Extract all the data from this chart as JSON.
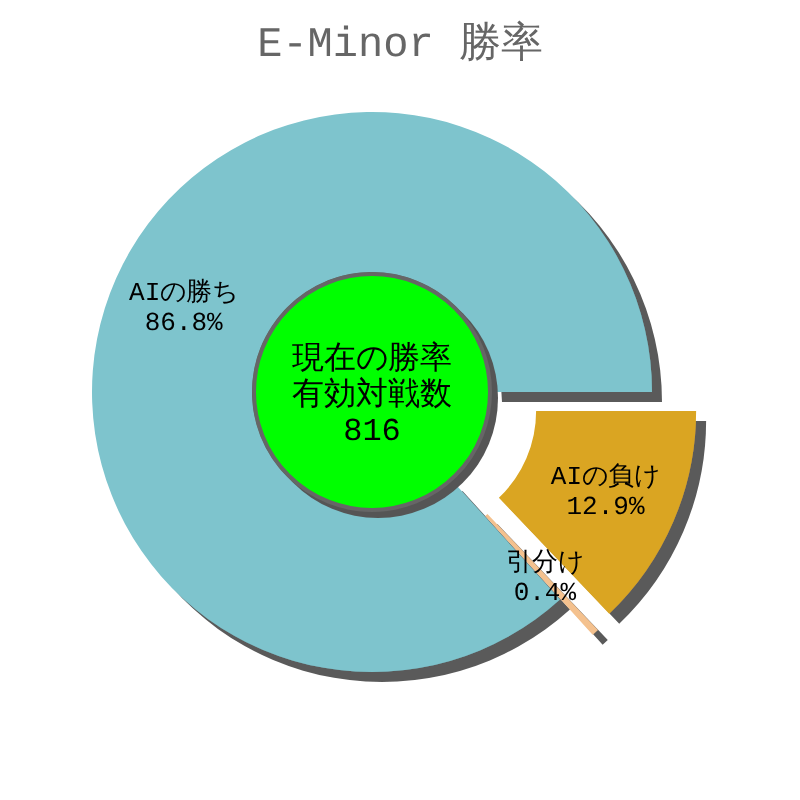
{
  "chart_data": {
    "type": "donut",
    "title": "E-Minor 勝率",
    "categories": [
      "AIの勝ち",
      "引分け",
      "AIの負け"
    ],
    "values": [
      86.8,
      0.4,
      12.9
    ],
    "colors": [
      "#7ec4cd",
      "#f4c18e",
      "#daa520"
    ],
    "value_labels": [
      "86.8%",
      "0.4%",
      "12.9%"
    ],
    "annotations": [
      "現在の勝率",
      "有効対戦数",
      "816"
    ]
  }
}
